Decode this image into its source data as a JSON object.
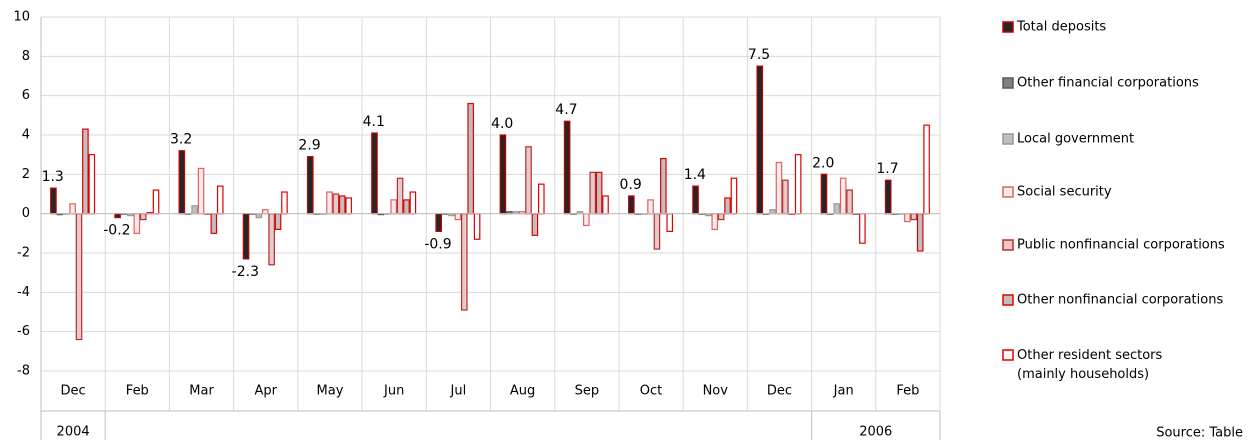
{
  "chart_data": {
    "type": "bar",
    "categories": [
      "Dec",
      "Feb",
      "Mar",
      "Apr",
      "May",
      "Jun",
      "Jul",
      "Aug",
      "Sep",
      "Oct",
      "Nov",
      "Dec",
      "Jan",
      "Feb"
    ],
    "year_groups": [
      {
        "label": "2004",
        "size": 1
      },
      {
        "label": null,
        "size": 11
      },
      {
        "label": "2006",
        "size": 2
      }
    ],
    "ylim": [
      -8,
      10
    ],
    "yticks": [
      -8,
      -6,
      -4,
      -2,
      0,
      2,
      4,
      6,
      8,
      10
    ],
    "grid": true,
    "source": "Source: Table",
    "series": [
      {
        "name": "Total deposits",
        "color": "#262626",
        "border": "#c00000",
        "values": [
          1.3,
          -0.2,
          3.2,
          -2.3,
          2.9,
          4.1,
          -0.9,
          4.0,
          4.7,
          0.9,
          1.4,
          7.5,
          2.0,
          1.7
        ],
        "value_labels": [
          "1.3",
          "-0.2",
          "3.2",
          "-2.3",
          "2.9",
          "4.1",
          "-0.9",
          "4.0",
          "4.7",
          "0.9",
          "1.4",
          "7.5",
          "2.0",
          "1.7"
        ]
      },
      {
        "name": "Other financial corporations",
        "color": "#7f7f7f",
        "border": "#595959",
        "values": [
          -0.05,
          0,
          0,
          0,
          0,
          -0.05,
          0,
          0.1,
          0,
          0,
          0,
          0,
          0,
          0
        ]
      },
      {
        "name": "Local government",
        "color": "#bfbfbf",
        "border": "#999999",
        "values": [
          0,
          -0.1,
          0.4,
          -0.2,
          0,
          0,
          -0.1,
          0.1,
          0.1,
          0,
          -0.1,
          0.2,
          0.5,
          0
        ]
      },
      {
        "name": "Social security",
        "color": "#fdeaea",
        "border": "#e06060",
        "values": [
          0.5,
          -1.0,
          2.3,
          0.2,
          1.1,
          0.7,
          -0.3,
          0.1,
          -0.6,
          0.7,
          -0.8,
          2.6,
          1.8,
          -0.4
        ]
      },
      {
        "name": "Public nonfinancial corporations",
        "color": "#e8c8c8",
        "border": "#b03030",
        "values": [
          -6.4,
          -0.3,
          0,
          -2.6,
          1.0,
          1.8,
          -4.9,
          3.4,
          2.1,
          -1.8,
          -0.3,
          1.7,
          1.2,
          -0.3
        ]
      },
      {
        "name": "Other nonfinancial corporations",
        "color": "#bfbfbf",
        "border": "#e00000",
        "values": [
          4.3,
          0.05,
          -1.0,
          -0.8,
          0.9,
          0.7,
          5.6,
          -1.1,
          2.1,
          2.8,
          0.8,
          0,
          0,
          -1.9
        ]
      },
      {
        "name": "Other resident sectors (mainly households)",
        "color": "#ffffff",
        "border": "#e00000",
        "values": [
          3.0,
          1.2,
          1.4,
          1.1,
          0.8,
          1.1,
          -1.3,
          1.5,
          0.9,
          -0.9,
          1.8,
          3.0,
          -1.5,
          4.5
        ]
      }
    ]
  }
}
